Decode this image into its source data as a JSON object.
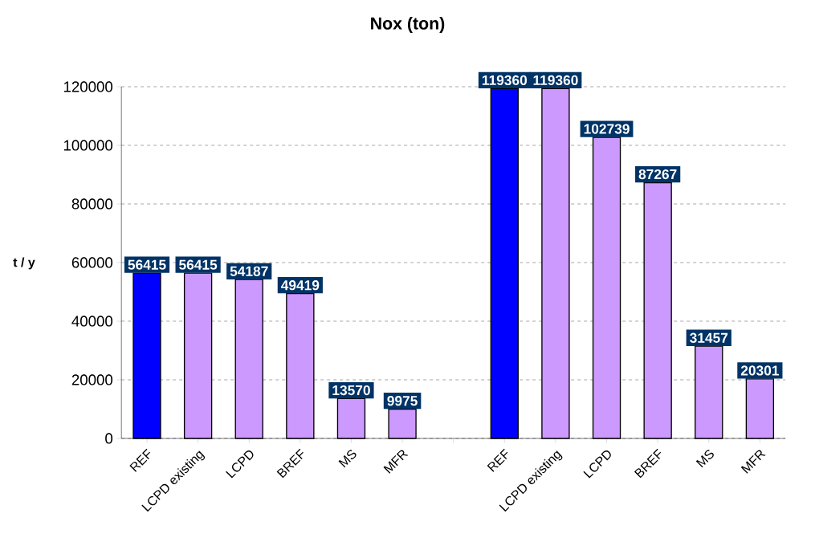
{
  "chart_data": {
    "type": "bar",
    "title": "Nox (ton)",
    "ylabel": "t / y",
    "categories": [
      "REF",
      "LCPD existing",
      "LCPD",
      "BREF",
      "MS",
      "MFR",
      null,
      "REF",
      "LCPD existing",
      "LCPD",
      "BREF",
      "MS",
      "MFR"
    ],
    "values": [
      56415,
      56415,
      54187,
      49419,
      13570,
      9975,
      null,
      119360,
      119360,
      102739,
      87267,
      31457,
      20301
    ],
    "colors": [
      "#0000ff",
      "#cc99ff",
      "#cc99ff",
      "#cc99ff",
      "#cc99ff",
      "#cc99ff",
      null,
      "#0000ff",
      "#cc99ff",
      "#cc99ff",
      "#cc99ff",
      "#cc99ff",
      "#cc99ff"
    ],
    "ylim": [
      0,
      120000
    ],
    "yticks": [
      0,
      20000,
      40000,
      60000,
      80000,
      100000,
      120000
    ],
    "grid": "y",
    "data_labels": true
  }
}
